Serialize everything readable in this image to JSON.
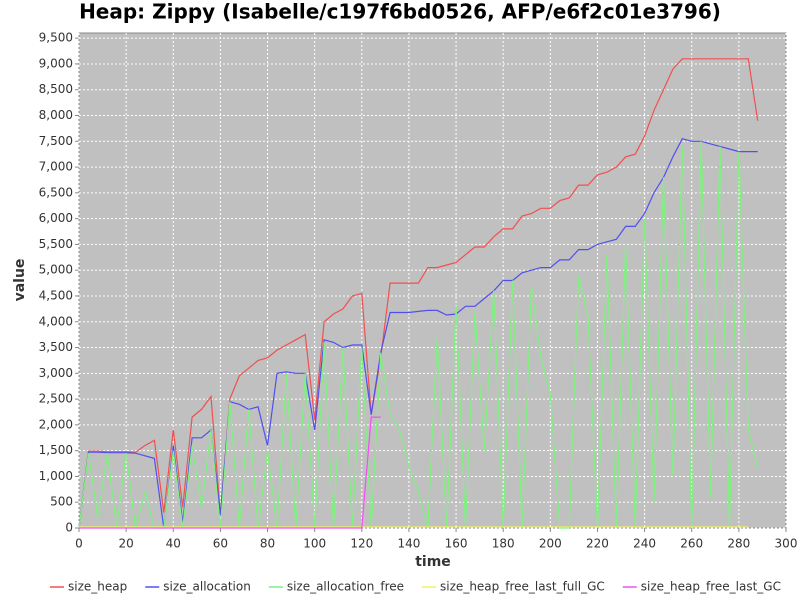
{
  "chart_data": {
    "type": "line",
    "title": "Heap: Zippy (Isabelle/c197f6bd0526, AFP/e6f2c01e3796)",
    "x_label": "time",
    "y_label": "value",
    "xlim": [
      0,
      300
    ],
    "xticks": [
      0,
      20,
      40,
      60,
      80,
      100,
      120,
      140,
      160,
      180,
      200,
      220,
      240,
      260,
      280,
      300
    ],
    "ylim": [
      0,
      9600
    ],
    "yticks": [
      0,
      500,
      {
        "value": 1000,
        "label": "1,000"
      },
      {
        "value": 1500,
        "label": "1,500"
      },
      {
        "value": 2000,
        "label": "2,000"
      },
      {
        "value": 2500,
        "label": "2,500"
      },
      {
        "value": 3000,
        "label": "3,000"
      },
      {
        "value": 3500,
        "label": "3,500"
      },
      {
        "value": 4000,
        "label": "4,000"
      },
      {
        "value": 4500,
        "label": "4,500"
      },
      {
        "value": 5000,
        "label": "5,000"
      },
      {
        "value": 5500,
        "label": "5,500"
      },
      {
        "value": 6000,
        "label": "6,000"
      },
      {
        "value": 6500,
        "label": "6,500"
      },
      {
        "value": 7000,
        "label": "7,000"
      },
      {
        "value": 7500,
        "label": "7,500"
      },
      {
        "value": 8000,
        "label": "8,000"
      },
      {
        "value": 8500,
        "label": "8,500"
      },
      {
        "value": 9000,
        "label": "9,000"
      },
      {
        "value": 9500,
        "label": "9,500"
      }
    ],
    "grid": true,
    "legend": "bottom",
    "x": [
      0,
      4,
      8,
      12,
      16,
      20,
      24,
      28,
      32,
      36,
      40,
      44,
      48,
      52,
      56,
      60,
      64,
      68,
      72,
      76,
      80,
      84,
      88,
      92,
      96,
      100,
      104,
      108,
      112,
      116,
      120,
      124,
      128,
      132,
      136,
      140,
      144,
      148,
      152,
      156,
      160,
      164,
      168,
      172,
      176,
      180,
      184,
      188,
      192,
      196,
      200,
      204,
      208,
      212,
      216,
      220,
      224,
      228,
      232,
      236,
      240,
      244,
      248,
      252,
      256,
      260,
      264,
      268,
      272,
      276,
      280,
      284,
      288
    ],
    "series": [
      {
        "name": "size_heap",
        "color": "#f05050",
        "values": [
          0,
          1490,
          1490,
          1480,
          1480,
          1480,
          1470,
          1600,
          1700,
          300,
          1900,
          400,
          2150,
          2300,
          2550,
          250,
          2500,
          2950,
          3100,
          3250,
          3300,
          3450,
          3550,
          3650,
          3750,
          2100,
          4000,
          4150,
          4250,
          4500,
          4550,
          2200,
          3300,
          4750,
          4750,
          4750,
          4750,
          5050,
          5050,
          5100,
          5150,
          5300,
          5450,
          5450,
          5650,
          5800,
          5800,
          6050,
          6100,
          6200,
          6200,
          6350,
          6400,
          6650,
          6650,
          6850,
          6900,
          7000,
          7200,
          7250,
          7600,
          8100,
          8500,
          8900,
          9100,
          9100,
          9100,
          9100,
          9100,
          9100,
          9100,
          9100,
          7900
        ]
      },
      {
        "name": "size_allocation",
        "color": "#5050f0",
        "values": [
          0,
          1470,
          1470,
          1460,
          1460,
          1460,
          1450,
          1400,
          1350,
          0,
          1600,
          100,
          1750,
          1750,
          1900,
          250,
          2450,
          2400,
          2300,
          2350,
          1600,
          3000,
          3030,
          3000,
          3000,
          1900,
          3650,
          3600,
          3500,
          3550,
          3550,
          2200,
          3400,
          4180,
          4180,
          4180,
          4200,
          4220,
          4220,
          4130,
          4150,
          4300,
          4300,
          4450,
          4600,
          4800,
          4800,
          4950,
          5000,
          5050,
          5050,
          5200,
          5200,
          5400,
          5400,
          5500,
          5550,
          5600,
          5850,
          5850,
          6100,
          6500,
          6800,
          7200,
          7550,
          7500,
          7500,
          7450,
          7400,
          7350,
          7300,
          7300,
          7300
        ]
      },
      {
        "name": "size_allocation_free",
        "color": "#80f080",
        "values": [
          0,
          1450,
          200,
          1450,
          0,
          1450,
          0,
          700,
          0,
          0,
          1500,
          0,
          1600,
          400,
          1900,
          0,
          2450,
          0,
          2300,
          0,
          1500,
          0,
          3000,
          0,
          3000,
          0,
          3600,
          0,
          3500,
          0,
          3500,
          0,
          3400,
          2200,
          1900,
          1200,
          700,
          0,
          3700,
          0,
          4300,
          0,
          4200,
          1500,
          4600,
          0,
          4800,
          0,
          4700,
          3300,
          2600,
          0,
          0,
          4900,
          4100,
          0,
          5300,
          0,
          5500,
          0,
          6000,
          500,
          6800,
          1000,
          7400,
          0,
          7500,
          600,
          7400,
          0,
          7300,
          1900,
          1150
        ]
      },
      {
        "name": "size_heap_free_last_full_GC",
        "color": "#f0f060",
        "values": [
          20,
          20,
          20,
          20,
          20,
          20,
          20,
          20,
          20,
          20,
          20,
          20,
          20,
          20,
          20,
          20,
          20,
          20,
          20,
          20,
          20,
          20,
          20,
          20,
          20,
          20,
          20,
          20,
          20,
          20,
          20,
          20,
          20,
          20,
          20,
          20,
          20,
          20,
          20,
          20,
          20,
          20,
          20,
          20,
          20,
          20,
          20,
          20,
          20,
          20,
          20,
          20,
          20,
          20,
          20,
          20,
          20,
          20,
          20,
          20,
          20,
          20,
          20,
          20,
          20,
          20,
          20,
          20,
          20,
          20,
          20,
          20,
          null
        ]
      },
      {
        "name": "size_heap_free_last_GC",
        "color": "#f050f0",
        "values": [
          0,
          0,
          0,
          0,
          0,
          0,
          0,
          0,
          0,
          0,
          0,
          0,
          0,
          0,
          0,
          0,
          0,
          0,
          0,
          0,
          0,
          0,
          0,
          0,
          0,
          0,
          0,
          0,
          0,
          0,
          0,
          2150,
          2150,
          null,
          null,
          null,
          null,
          null,
          null,
          null,
          null,
          null,
          null,
          null,
          null,
          null,
          null,
          null,
          null,
          null,
          null,
          null,
          null,
          null,
          null,
          null,
          null,
          null,
          null,
          null,
          null,
          null,
          null,
          null,
          null,
          null,
          null,
          null,
          null,
          null,
          null,
          null,
          null
        ]
      }
    ]
  }
}
